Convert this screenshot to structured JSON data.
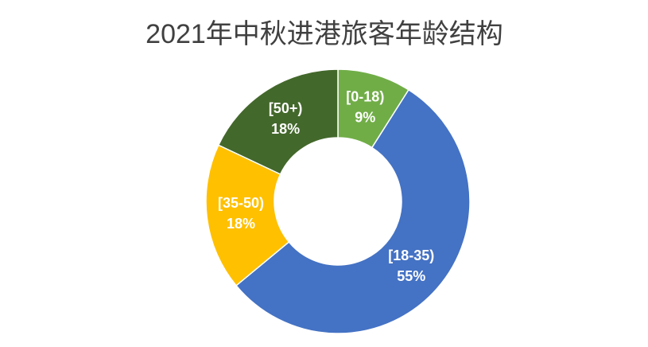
{
  "chart_data": {
    "type": "pie",
    "title": "2021年中秋进港旅客年龄结构",
    "categories": [
      "[0-18)",
      "[18-35)",
      "[35-50)",
      "[50+)"
    ],
    "values": [
      9,
      55,
      18,
      18
    ],
    "value_labels": [
      "9%",
      "55%",
      "18%",
      "18%"
    ],
    "colors": [
      "#70ad47",
      "#4472c4",
      "#ffc000",
      "#43682b"
    ],
    "donut": true
  }
}
